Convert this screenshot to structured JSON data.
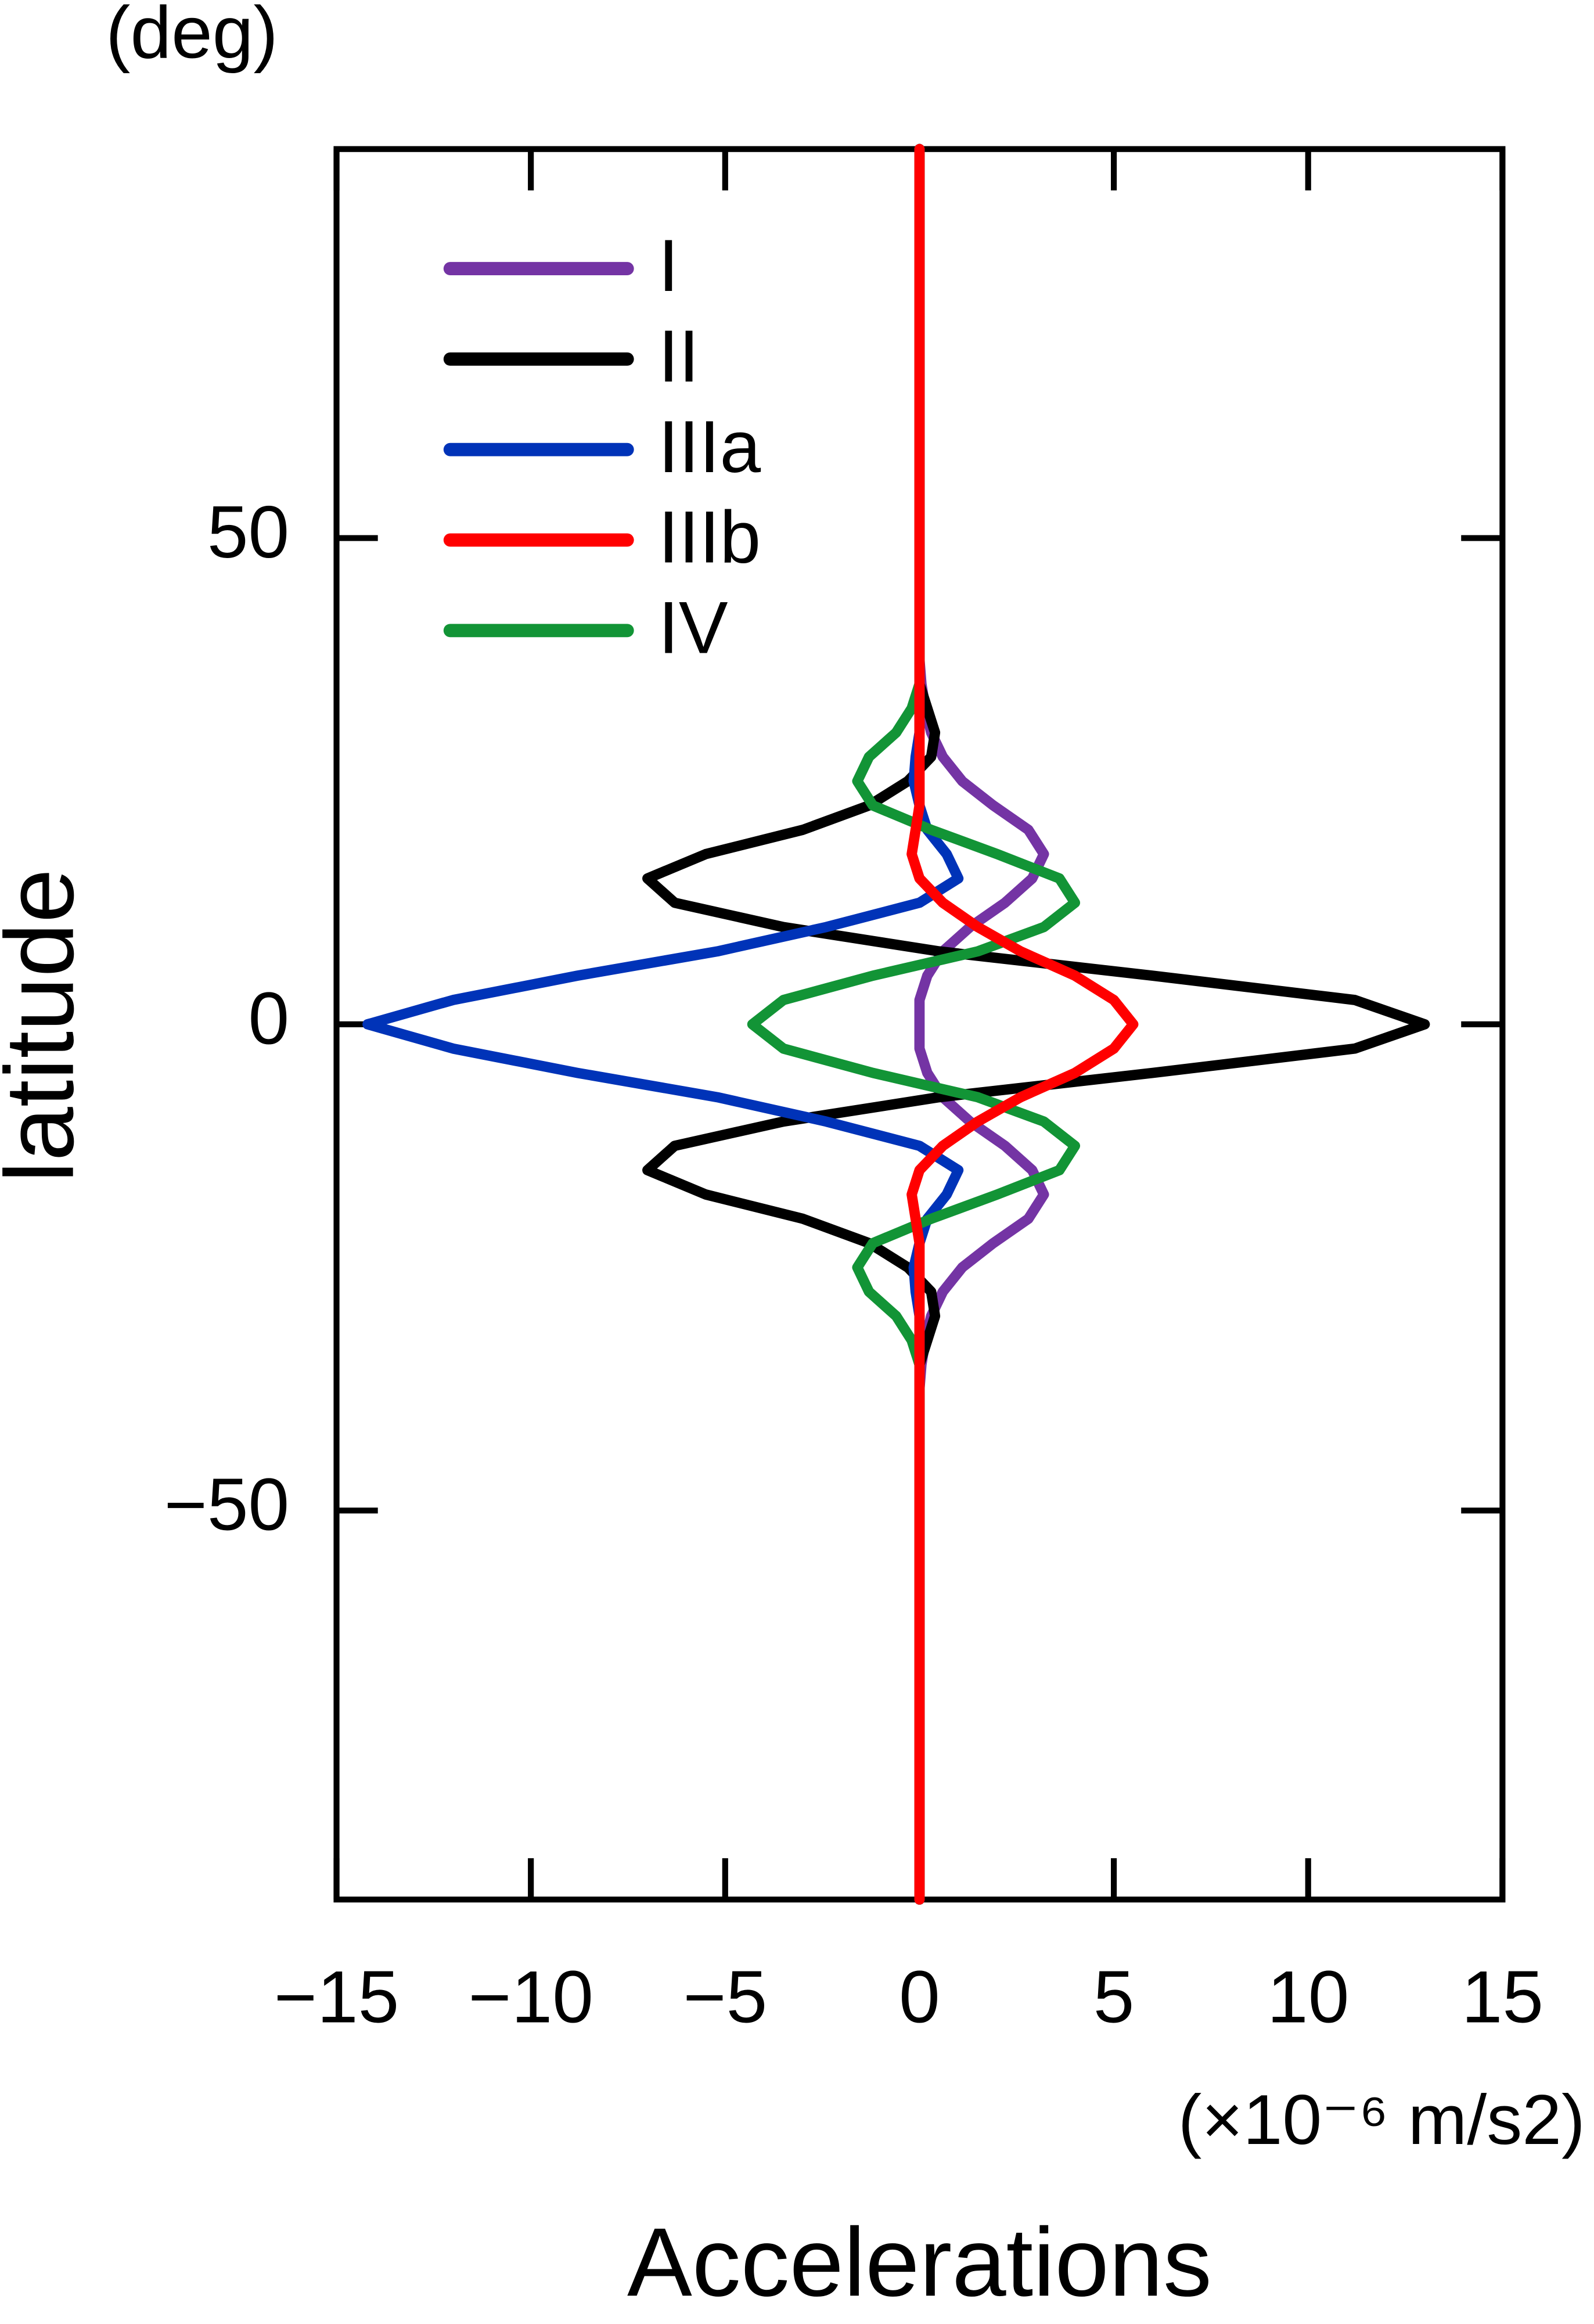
{
  "chart_data": {
    "type": "line",
    "orientation": "vertical",
    "title_y_unit": "(deg)",
    "ylabel": "latitude",
    "xlabel": "Accelerations",
    "x_unit": "(×10⁻⁶ m/s2)",
    "y": [
      -90,
      -45,
      -42.5,
      -40,
      -37.5,
      -35,
      -32.5,
      -30,
      -27.5,
      -25,
      -22.5,
      -20,
      -17.5,
      -15,
      -12.5,
      -10,
      -7.5,
      -5,
      -2.5,
      0,
      2.5,
      5,
      7.5,
      10,
      12.5,
      15,
      17.5,
      20,
      22.5,
      25,
      27.5,
      30,
      32.5,
      35,
      37.5,
      40,
      42.5,
      45,
      90
    ],
    "series": [
      {
        "name": "I",
        "color": "#7434a4",
        "values": [
          0,
          0,
          0,
          0,
          0,
          0.05,
          0.15,
          0.3,
          0.6,
          1.1,
          1.9,
          2.8,
          3.2,
          2.9,
          2.2,
          1.3,
          0.6,
          0.2,
          0,
          0,
          0,
          0.2,
          0.6,
          1.3,
          2.2,
          2.9,
          3.2,
          2.8,
          1.9,
          1.1,
          0.6,
          0.3,
          0.15,
          0.05,
          0,
          0,
          0,
          0,
          0
        ]
      },
      {
        "name": "II",
        "color": "#000000",
        "values": [
          0,
          0,
          0,
          0,
          0,
          0,
          0.2,
          0.4,
          0.3,
          -0.3,
          -1.3,
          -3,
          -5.5,
          -7,
          -6.3,
          -3.5,
          0.5,
          6,
          11.2,
          13,
          11.2,
          6,
          0.5,
          -3.5,
          -6.3,
          -7,
          -5.5,
          -3,
          -1.3,
          -0.3,
          0.3,
          0.4,
          0.2,
          0,
          0,
          0,
          0,
          0,
          0
        ]
      },
      {
        "name": "IIIa",
        "color": "#0033b8",
        "values": [
          0,
          0,
          0,
          0,
          0,
          0,
          0,
          0,
          -0.1,
          -0.15,
          0,
          0.2,
          0.7,
          1,
          0,
          -2.4,
          -5.2,
          -8.8,
          -12,
          -14.2,
          -12,
          -8.8,
          -5.2,
          -2.4,
          0,
          1,
          0.7,
          0.2,
          0,
          -0.15,
          -0.1,
          0,
          0,
          0,
          0,
          0,
          0,
          0,
          0
        ]
      },
      {
        "name": "IIIb",
        "color": "#ff0000",
        "values": [
          0,
          0,
          0,
          0,
          0,
          0,
          0,
          0,
          0,
          0,
          0,
          -0.1,
          -0.2,
          0,
          0.6,
          1.5,
          2.6,
          4,
          5,
          5.5,
          5,
          4,
          2.6,
          1.5,
          0.6,
          0,
          -0.2,
          -0.1,
          0,
          0,
          0,
          0,
          0,
          0,
          0,
          0,
          0,
          0,
          0
        ]
      },
      {
        "name": "IV",
        "color": "#129436",
        "values": [
          0,
          0,
          0,
          0,
          0,
          0,
          -0.2,
          -0.6,
          -1.3,
          -1.6,
          -1.2,
          0.3,
          2,
          3.6,
          4,
          3.2,
          1.5,
          -1.2,
          -3.5,
          -4.3,
          -3.5,
          -1.2,
          1.5,
          3.2,
          4,
          3.6,
          2,
          0.3,
          -1.2,
          -1.6,
          -1.3,
          -0.6,
          -0.2,
          0,
          0,
          0,
          0,
          0,
          0
        ]
      }
    ],
    "xlim": [
      -15,
      15
    ],
    "xticks": [
      {
        "value": -15,
        "label": "−15"
      },
      {
        "value": -10,
        "label": "−10"
      },
      {
        "value": -5,
        "label": "−5"
      },
      0,
      5,
      10,
      15
    ],
    "ylim": [
      -90,
      90
    ],
    "yticks": [
      {
        "value": -50,
        "label": "−50"
      },
      0,
      50
    ],
    "legend": "upper-left",
    "grid": false
  }
}
